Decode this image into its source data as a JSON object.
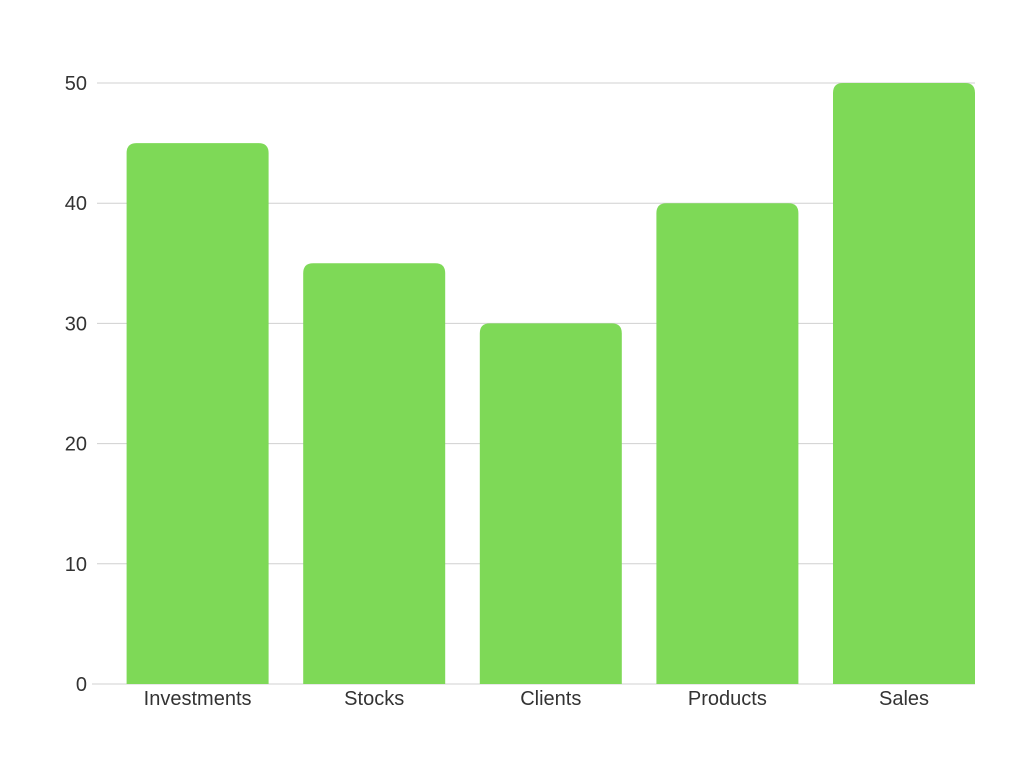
{
  "chart_data": {
    "type": "bar",
    "categories": [
      "Investments",
      "Stocks",
      "Clients",
      "Products",
      "Sales"
    ],
    "values": [
      45,
      35,
      30,
      40,
      50
    ],
    "title": "",
    "xlabel": "",
    "ylabel": "",
    "ylim": [
      0,
      50
    ],
    "yticks": [
      "0",
      "10",
      "20",
      "30",
      "40",
      "50"
    ],
    "grid": true,
    "legend": "none",
    "bar_color": "#7ED957",
    "grid_color": "#d0d0d0",
    "text_color": "#333333"
  }
}
